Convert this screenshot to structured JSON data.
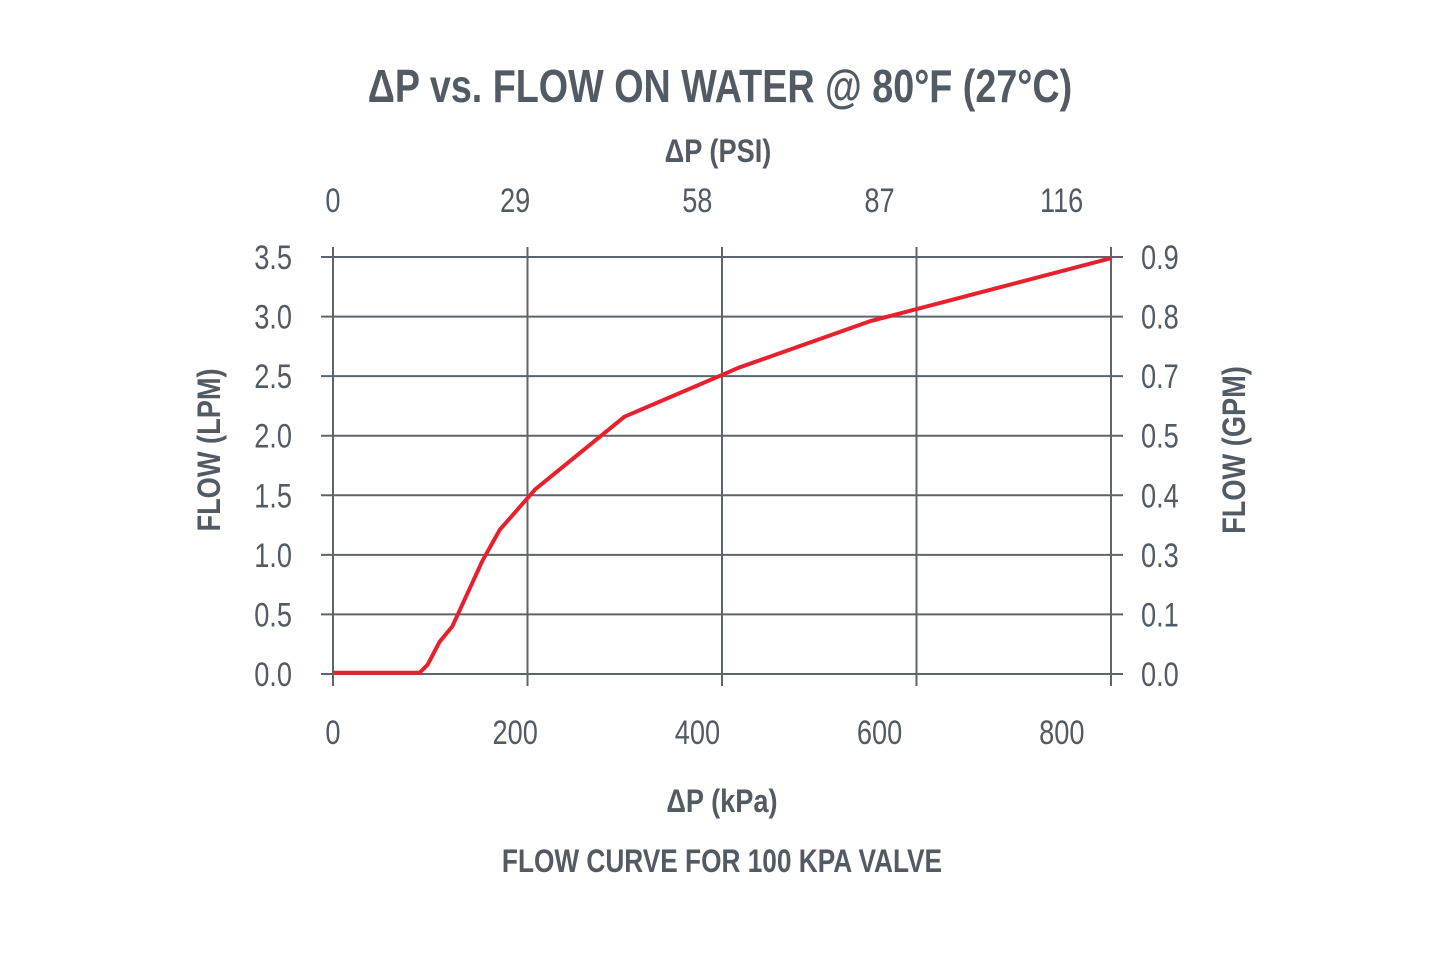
{
  "chart_data": {
    "type": "line",
    "title": "ΔP vs. FLOW ON WATER @ 80°F (27°C)",
    "subtitle": "FLOW CURVE FOR 100 KPA VALVE",
    "xlabel": "ΔP (kPa)",
    "x2label": "ΔP (PSI)",
    "ylabel": "FLOW (LPM)",
    "y2label": "FLOW (GPM)",
    "xlim": [
      0,
      854
    ],
    "ylim": [
      0,
      3.5
    ],
    "x_ticks": [
      0,
      200,
      400,
      600,
      800
    ],
    "x2_ticks": [
      0,
      29,
      58,
      87,
      116
    ],
    "y_ticks": [
      "0.0",
      "0.5",
      "1.0",
      "1.5",
      "2.0",
      "2.5",
      "3.0",
      "3.5"
    ],
    "y2_ticks": [
      "0.0",
      "0.1",
      "0.3",
      "0.4",
      "0.5",
      "0.7",
      "0.8",
      "0.9"
    ],
    "grid": true,
    "line_color": "#e8202e",
    "text_color": "#525a63",
    "series": [
      {
        "x": [
          0,
          95,
          104,
          117,
          131,
          164,
          183,
          222,
          320,
          427,
          445,
          589,
          854
        ],
        "y": [
          0.01,
          0.01,
          0.08,
          0.27,
          0.4,
          0.95,
          1.21,
          1.55,
          2.16,
          2.51,
          2.57,
          2.96,
          3.49
        ]
      }
    ]
  }
}
